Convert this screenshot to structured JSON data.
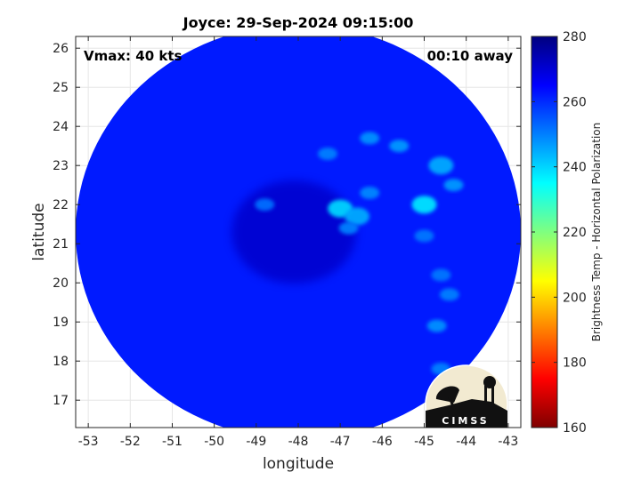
{
  "chart_data": {
    "type": "heatmap",
    "title": "Joyce: 29-Sep-2024 09:15:00",
    "xlabel": "longitude",
    "ylabel": "latitude",
    "xlim": [
      -53.3,
      -42.7
    ],
    "ylim": [
      16.3,
      26.3
    ],
    "xticks": [
      -53,
      -52,
      -51,
      -50,
      -49,
      -48,
      -47,
      -46,
      -45,
      -44,
      -43
    ],
    "yticks": [
      17,
      18,
      19,
      20,
      21,
      22,
      23,
      24,
      25,
      26
    ],
    "grid": true,
    "annotations": {
      "vmax": "Vmax: 40 kts",
      "time_away": "00:10 away"
    },
    "colorbar": {
      "label": "Brightness Temp - Horizontal Polarization",
      "range": [
        160,
        280
      ],
      "ticks": [
        160,
        180,
        200,
        220,
        240,
        260,
        280
      ],
      "colormap": "jet"
    },
    "field": {
      "background_value": 262,
      "swath_center": [
        -48,
        21.3
      ],
      "swath_radius_deg": 5.3,
      "storm_center": [
        -48.1,
        21.3
      ],
      "storm_center_value": 271,
      "features": [
        {
          "lon": -45.0,
          "lat": 22.0,
          "value": 238
        },
        {
          "lon": -44.6,
          "lat": 23.0,
          "value": 245
        },
        {
          "lon": -44.3,
          "lat": 22.5,
          "value": 247
        },
        {
          "lon": -45.6,
          "lat": 23.5,
          "value": 247
        },
        {
          "lon": -46.3,
          "lat": 23.7,
          "value": 248
        },
        {
          "lon": -47.3,
          "lat": 23.3,
          "value": 250
        },
        {
          "lon": -47.0,
          "lat": 21.9,
          "value": 240
        },
        {
          "lon": -46.6,
          "lat": 21.7,
          "value": 245
        },
        {
          "lon": -46.3,
          "lat": 22.3,
          "value": 249
        },
        {
          "lon": -46.8,
          "lat": 21.4,
          "value": 250
        },
        {
          "lon": -45.0,
          "lat": 21.2,
          "value": 251
        },
        {
          "lon": -44.6,
          "lat": 20.2,
          "value": 251
        },
        {
          "lon": -44.4,
          "lat": 19.7,
          "value": 250
        },
        {
          "lon": -44.7,
          "lat": 18.9,
          "value": 248
        },
        {
          "lon": -44.6,
          "lat": 17.8,
          "value": 250
        },
        {
          "lon": -48.8,
          "lat": 22.0,
          "value": 252
        }
      ]
    }
  },
  "logo": {
    "text": "CIMSS"
  },
  "colors": {
    "colormap_low": "#7f0000",
    "colormap_high": "#00007f",
    "grid": "#e6e6e6",
    "axes": "#262626"
  }
}
